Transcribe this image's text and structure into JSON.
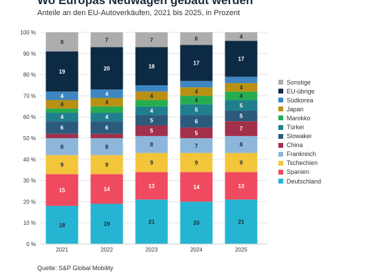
{
  "title": "Wo Europas Neuwagen gebaut werden",
  "subtitle": "Anteile an den EU-Autoverkäufen, 2021 bis 2025, in Prozent",
  "source": "Quelle: S&P Global Mobility",
  "chart_data": {
    "type": "bar",
    "stacked": true,
    "categories": [
      "2021",
      "2022",
      "2023",
      "2024",
      "2025"
    ],
    "y_ticks": [
      "0 %",
      "10 %",
      "20 %",
      "30 %",
      "40 %",
      "50 %",
      "60 %",
      "70 %",
      "80 %",
      "90 %",
      "100 %"
    ],
    "ylim": [
      0,
      100
    ],
    "grid": true,
    "legend_position": "right",
    "series": [
      {
        "name": "Deutschland",
        "color": "#25b5d2",
        "values": [
          18,
          19,
          21,
          20,
          21
        ],
        "labels": [
          "18",
          "19",
          "21",
          "20",
          "21"
        ]
      },
      {
        "name": "Spanien",
        "color": "#ef4a5f",
        "values": [
          15,
          14,
          13,
          14,
          13
        ],
        "labels": [
          "15",
          "14",
          "13",
          "14",
          "13"
        ]
      },
      {
        "name": "Tschechien",
        "color": "#f3c53b",
        "values": [
          9,
          9,
          9,
          9,
          9
        ],
        "labels": [
          "9",
          "9",
          "9",
          "9",
          "9"
        ]
      },
      {
        "name": "Frankreich",
        "color": "#8db7da",
        "values": [
          8,
          8,
          8,
          7,
          8
        ],
        "labels": [
          "8",
          "8",
          "8",
          "7",
          "8"
        ]
      },
      {
        "name": "China",
        "color": "#a3304b",
        "values": [
          2,
          2,
          5,
          5,
          7
        ],
        "labels": [
          "",
          "",
          "5",
          "5",
          "7"
        ]
      },
      {
        "name": "Slowakei",
        "color": "#2c5a7c",
        "values": [
          6,
          6,
          5,
          6,
          5
        ],
        "labels": [
          "6",
          "6",
          "5",
          "6",
          "5"
        ]
      },
      {
        "name": "Türkei",
        "color": "#1f7f8c",
        "values": [
          4,
          4,
          4,
          5,
          5
        ],
        "labels": [
          "4",
          "4",
          "4",
          "5",
          "5"
        ]
      },
      {
        "name": "Marokko",
        "color": "#26ac51",
        "values": [
          2,
          3,
          3,
          4,
          4
        ],
        "labels": [
          "",
          "",
          "",
          "4",
          "4"
        ]
      },
      {
        "name": "Japan",
        "color": "#b89012",
        "values": [
          4,
          4,
          4,
          4,
          4
        ],
        "labels": [
          "4",
          "4",
          "4",
          "4",
          "4"
        ]
      },
      {
        "name": "Südkorea",
        "color": "#3e86c1",
        "values": [
          4,
          4,
          3,
          3,
          3
        ],
        "labels": [
          "4",
          "4",
          "",
          "",
          ""
        ]
      },
      {
        "name": "EU-übrige",
        "color": "#0d2a44",
        "values": [
          19,
          20,
          18,
          17,
          17
        ],
        "labels": [
          "19",
          "20",
          "18",
          "17",
          "17"
        ]
      },
      {
        "name": "Sonstige",
        "color": "#adadad",
        "values": [
          9,
          7,
          7,
          6,
          4
        ],
        "labels": [
          "9",
          "7",
          "7",
          "6",
          "4"
        ]
      }
    ],
    "legend_order": [
      "Sonstige",
      "EU-übrige",
      "Südkorea",
      "Japan",
      "Marokko",
      "Türkei",
      "Slowakei",
      "China",
      "Frankreich",
      "Tschechien",
      "Spanien",
      "Deutschland"
    ]
  }
}
